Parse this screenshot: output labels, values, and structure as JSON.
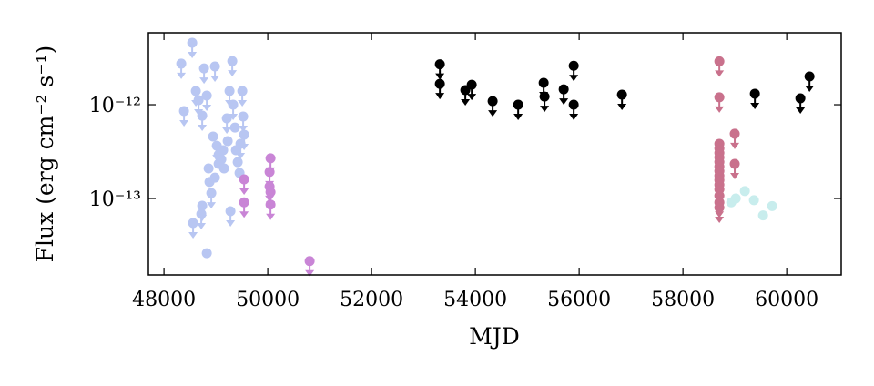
{
  "chart_data": {
    "type": "scatter",
    "log_y": true,
    "x_label": "MJD",
    "y_label": "Flux (erg cm⁻² s⁻¹)",
    "xlim": [
      47700,
      61050
    ],
    "xticks": [
      48000,
      50000,
      52000,
      54000,
      56000,
      58000,
      60000
    ],
    "ylim": [
      1.53e-14,
      5.85e-12
    ],
    "yticks": [
      {
        "value": 1e-13,
        "label": "10⁻¹³"
      },
      {
        "value": 1e-12,
        "label": "10⁻¹²"
      }
    ],
    "series": [
      {
        "color": "#b8c6f2",
        "x": [
          48333,
          48544,
          48386,
          48614,
          48667,
          48737,
          48772,
          48982,
          48825,
          48947,
          49018,
          49053,
          49105,
          49158,
          49211,
          49263,
          49316,
          49333,
          49368,
          49386,
          49421,
          49456,
          49509,
          49526,
          49544,
          48860,
          48877,
          48912,
          48737,
          48719,
          48561,
          48825,
          49281,
          49228,
          49140,
          49053,
          48982,
          49474
        ],
        "values": [
          2.74e-12,
          4.57e-12,
          8.55e-13,
          1.4e-12,
          1.12e-12,
          7.64e-13,
          2.44e-12,
          2.56e-12,
          1.25e-12,
          4.57e-13,
          3.65e-13,
          2.92e-13,
          2.61e-13,
          2.09e-13,
          7.15e-13,
          1.4e-12,
          2.92e-12,
          1e-12,
          5.71e-13,
          3.27e-13,
          2.44e-13,
          1.87e-13,
          1.4e-12,
          7.48e-13,
          4.79e-13,
          2.09e-13,
          1.5e-13,
          1.14e-13,
          8.36e-14,
          6.84e-14,
          5.47e-14,
          2.61e-14,
          7.31e-14,
          4.09e-13,
          3.27e-13,
          2.34e-13,
          1.67e-13,
          3.83e-13
        ],
        "upper_limits": [
          true,
          true,
          true,
          true,
          true,
          true,
          true,
          true,
          true,
          false,
          true,
          false,
          false,
          false,
          true,
          true,
          true,
          true,
          false,
          false,
          false,
          false,
          true,
          true,
          true,
          false,
          false,
          true,
          true,
          true,
          true,
          false,
          true,
          false,
          false,
          false,
          false,
          true
        ]
      },
      {
        "color": "#c985d6",
        "x": [
          50053,
          50035,
          50035,
          50053,
          50053,
          49544,
          49544,
          50807
        ],
        "values": [
          2.68e-13,
          1.92e-13,
          1.34e-13,
          1.17e-13,
          8.6e-14,
          1.6e-13,
          9.1e-14,
          2.15e-14
        ],
        "upper_limits": [
          true,
          true,
          true,
          true,
          true,
          true,
          true,
          true
        ]
      },
      {
        "color": "#000000",
        "x": [
          53316,
          53316,
          53807,
          53930,
          54333,
          54825,
          55316,
          55333,
          55702,
          55895,
          55895,
          56825,
          59386,
          60263,
          60439
        ],
        "values": [
          2.7e-12,
          1.67e-12,
          1.43e-12,
          1.63e-12,
          1.09e-12,
          1e-12,
          1.71e-12,
          1.22e-12,
          1.46e-12,
          2.6e-12,
          1e-12,
          1.28e-12,
          1.31e-12,
          1.17e-12,
          2e-12
        ],
        "upper_limits": [
          true,
          true,
          true,
          true,
          true,
          true,
          true,
          true,
          true,
          true,
          true,
          true,
          true,
          true,
          true
        ]
      },
      {
        "color": "#c9718c",
        "x": [
          58702,
          58702,
          58702,
          58702,
          58702,
          58702,
          58702,
          58702,
          58702,
          58702,
          58702,
          58702,
          58702,
          58702,
          58702,
          58702,
          58998,
          58998
        ],
        "values": [
          2.9e-12,
          1.2e-12,
          3.83e-13,
          3.42e-13,
          3.06e-13,
          2.74e-13,
          2.45e-13,
          2.19e-13,
          1.96e-13,
          1.75e-13,
          1.57e-13,
          1.4e-13,
          1.25e-13,
          1.07e-13,
          9.1e-14,
          8e-14,
          4.9e-13,
          2.34e-13
        ],
        "upper_limits": [
          true,
          true,
          false,
          false,
          false,
          false,
          false,
          false,
          false,
          false,
          false,
          false,
          false,
          false,
          true,
          true,
          true,
          true
        ]
      },
      {
        "color": "#c8eded",
        "x": [
          58930,
          59018,
          59193,
          59368,
          59544,
          59719
        ],
        "values": [
          9.1e-14,
          1e-13,
          1.2e-13,
          9.6e-14,
          6.6e-14,
          8.3e-14
        ],
        "upper_limits": [
          false,
          false,
          false,
          false,
          false,
          false
        ]
      }
    ]
  }
}
